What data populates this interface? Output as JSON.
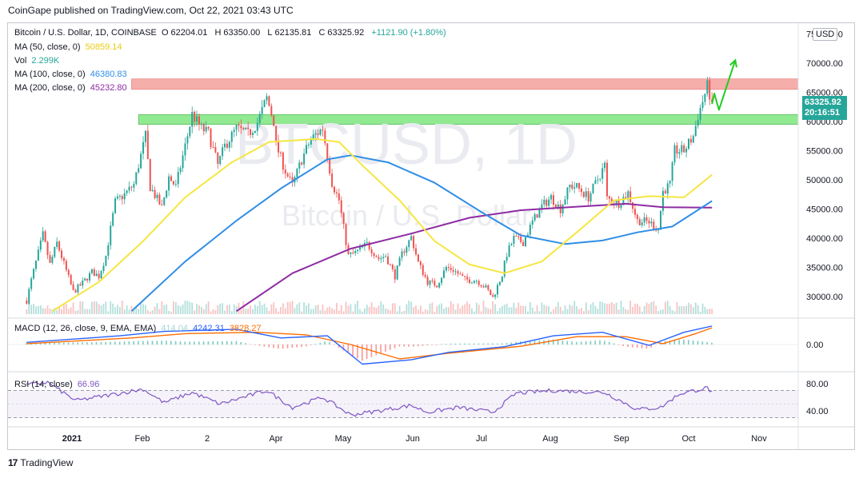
{
  "publisher_line": "CoinGape published on TradingView.com, Oct 22, 2021 03:43 UTC",
  "header": {
    "symbol": "Bitcoin / U.S. Dollar, 1D, COINBASE",
    "o_label": "O",
    "o": "62204.01",
    "h_label": "H",
    "h": "63350.00",
    "l_label": "L",
    "l": "62135.81",
    "c_label": "C",
    "c": "63325.92",
    "change": "+1121.90 (+1.80%)"
  },
  "indicators": {
    "ma50": {
      "label": "MA (50, close, 0)",
      "value": "50859.14",
      "color": "#f5e642"
    },
    "vol": {
      "label": "Vol",
      "value": "2.299K"
    },
    "ma100": {
      "label": "MA (100, close, 0)",
      "value": "46380.83",
      "color": "#2f8ee6"
    },
    "ma200": {
      "label": "MA (200, close, 0)",
      "value": "45232.80",
      "color": "#8e2ba3"
    },
    "macd": {
      "label": "MACD (12, 26, close, 9, EMA, EMA)",
      "hist": "414.04",
      "macd": "4242.31",
      "signal": "3828.27"
    },
    "rsi": {
      "label": "RSI (14, close)",
      "value": "66.96"
    }
  },
  "price_axis": {
    "currency": "USD",
    "ticks": [
      "75000.00",
      "70000.00",
      "65000.00",
      "60000.00",
      "55000.00",
      "50000.00",
      "45000.00",
      "40000.00",
      "35000.00",
      "30000.00"
    ],
    "last_price": "63325.92",
    "countdown": "20:16:51"
  },
  "macd_axis": {
    "ticks": [
      "0.00"
    ]
  },
  "rsi_axis": {
    "ticks": [
      "80.00",
      "40.00"
    ]
  },
  "time_axis": {
    "ticks": [
      "2021",
      "Feb",
      "2",
      "Apr",
      "May",
      "Jun",
      "Jul",
      "Aug",
      "Sep",
      "Oct",
      "Nov"
    ]
  },
  "watermark": {
    "line1": "BTCUSD, 1D",
    "line2": "Bitcoin / U.S. Dollar"
  },
  "branding": {
    "logo_mark": "17",
    "logo_text": "TradingView"
  },
  "colors": {
    "up": "#26a69a",
    "down": "#ef5350",
    "resistance_zone": "#f4a09c",
    "support_zone": "#7ee57e",
    "projection": "#22cc22"
  },
  "chart_data": {
    "type": "candlestick",
    "title": "Bitcoin / U.S. Dollar, 1D, COINBASE",
    "ylim": [
      27000,
      77000
    ],
    "x_range": [
      "2020-12-24",
      "2021-11-28"
    ],
    "zones": [
      {
        "name": "resistance",
        "from": 65500,
        "to": 67300,
        "start": "2021-02-15"
      },
      {
        "name": "support",
        "from": 59500,
        "to": 61200,
        "start": "2021-02-18"
      }
    ],
    "close_path": [
      [
        "2021-01-01",
        29300
      ],
      [
        "2021-01-03",
        32800
      ],
      [
        "2021-01-08",
        40600
      ],
      [
        "2021-01-11",
        35500
      ],
      [
        "2021-01-14",
        39200
      ],
      [
        "2021-01-21",
        30800
      ],
      [
        "2021-01-25",
        32300
      ],
      [
        "2021-01-29",
        34200
      ],
      [
        "2021-02-01",
        33500
      ],
      [
        "2021-02-04",
        37000
      ],
      [
        "2021-02-08",
        46200
      ],
      [
        "2021-02-12",
        47500
      ],
      [
        "2021-02-16",
        49200
      ],
      [
        "2021-02-21",
        57500
      ],
      [
        "2021-02-23",
        48800
      ],
      [
        "2021-02-28",
        45200
      ],
      [
        "2021-03-03",
        50500
      ],
      [
        "2021-03-06",
        48800
      ],
      [
        "2021-03-10",
        55800
      ],
      [
        "2021-03-13",
        61200
      ],
      [
        "2021-03-17",
        58800
      ],
      [
        "2021-03-20",
        58000
      ],
      [
        "2021-03-24",
        52500
      ],
      [
        "2021-03-27",
        55800
      ],
      [
        "2021-04-01",
        58800
      ],
      [
        "2021-04-06",
        57800
      ],
      [
        "2021-04-10",
        59800
      ],
      [
        "2021-04-14",
        64000
      ],
      [
        "2021-04-17",
        60000
      ],
      [
        "2021-04-18",
        56000
      ],
      [
        "2021-04-22",
        51500
      ],
      [
        "2021-04-25",
        49000
      ],
      [
        "2021-04-29",
        53500
      ],
      [
        "2021-05-03",
        57000
      ],
      [
        "2021-05-08",
        58800
      ],
      [
        "2021-05-12",
        49500
      ],
      [
        "2021-05-15",
        46500
      ],
      [
        "2021-05-19",
        37000
      ],
      [
        "2021-05-22",
        37500
      ],
      [
        "2021-05-27",
        39000
      ],
      [
        "2021-06-01",
        36500
      ],
      [
        "2021-06-04",
        37000
      ],
      [
        "2021-06-08",
        33500
      ],
      [
        "2021-06-11",
        37300
      ],
      [
        "2021-06-15",
        40200
      ],
      [
        "2021-06-18",
        35800
      ],
      [
        "2021-06-22",
        32500
      ],
      [
        "2021-06-26",
        32000
      ],
      [
        "2021-06-30",
        35000
      ],
      [
        "2021-07-03",
        34600
      ],
      [
        "2021-07-08",
        32900
      ],
      [
        "2021-07-13",
        32800
      ],
      [
        "2021-07-17",
        31500
      ],
      [
        "2021-07-20",
        29800
      ],
      [
        "2021-07-24",
        33800
      ],
      [
        "2021-07-26",
        37300
      ],
      [
        "2021-07-29",
        40000
      ],
      [
        "2021-08-02",
        39300
      ],
      [
        "2021-08-06",
        42800
      ],
      [
        "2021-08-10",
        45500
      ],
      [
        "2021-08-14",
        47000
      ],
      [
        "2021-08-18",
        45000
      ],
      [
        "2021-08-22",
        49000
      ],
      [
        "2021-08-25",
        48800
      ],
      [
        "2021-08-30",
        47000
      ],
      [
        "2021-09-06",
        52500
      ],
      [
        "2021-09-07",
        46800
      ],
      [
        "2021-09-12",
        46000
      ],
      [
        "2021-09-16",
        47800
      ],
      [
        "2021-09-20",
        43000
      ],
      [
        "2021-09-25",
        42800
      ],
      [
        "2021-09-29",
        41500
      ],
      [
        "2021-10-01",
        48000
      ],
      [
        "2021-10-04",
        49200
      ],
      [
        "2021-10-06",
        55000
      ],
      [
        "2021-10-10",
        55000
      ],
      [
        "2021-10-14",
        57500
      ],
      [
        "2021-10-16",
        61000
      ],
      [
        "2021-10-20",
        66000
      ],
      [
        "2021-10-22",
        63325.92
      ]
    ],
    "ma50_path": [
      [
        "2021-01-12",
        27500
      ],
      [
        "2021-02-01",
        32500
      ],
      [
        "2021-02-20",
        39500
      ],
      [
        "2021-03-10",
        47000
      ],
      [
        "2021-03-30",
        53000
      ],
      [
        "2021-04-15",
        56500
      ],
      [
        "2021-05-05",
        57000
      ],
      [
        "2021-05-15",
        56500
      ],
      [
        "2021-05-25",
        52500
      ],
      [
        "2021-06-10",
        46500
      ],
      [
        "2021-06-25",
        39500
      ],
      [
        "2021-07-10",
        35500
      ],
      [
        "2021-07-25",
        34000
      ],
      [
        "2021-08-10",
        36000
      ],
      [
        "2021-08-25",
        41000
      ],
      [
        "2021-09-10",
        46500
      ],
      [
        "2021-09-25",
        47200
      ],
      [
        "2021-10-10",
        47000
      ],
      [
        "2021-10-22",
        50859.14
      ]
    ],
    "ma100_path": [
      [
        "2021-02-15",
        27500
      ],
      [
        "2021-03-10",
        36000
      ],
      [
        "2021-04-01",
        43000
      ],
      [
        "2021-04-20",
        48500
      ],
      [
        "2021-05-10",
        53500
      ],
      [
        "2021-05-20",
        54200
      ],
      [
        "2021-06-05",
        53000
      ],
      [
        "2021-06-25",
        49500
      ],
      [
        "2021-07-15",
        44500
      ],
      [
        "2021-08-01",
        40500
      ],
      [
        "2021-08-20",
        39000
      ],
      [
        "2021-09-05",
        39600
      ],
      [
        "2021-09-20",
        41000
      ],
      [
        "2021-10-05",
        42000
      ],
      [
        "2021-10-22",
        46380.83
      ]
    ],
    "ma200_path": [
      [
        "2021-04-01",
        27500
      ],
      [
        "2021-04-25",
        34000
      ],
      [
        "2021-05-20",
        38200
      ],
      [
        "2021-06-15",
        40800
      ],
      [
        "2021-07-10",
        43500
      ],
      [
        "2021-08-01",
        44800
      ],
      [
        "2021-08-25",
        45400
      ],
      [
        "2021-09-15",
        45900
      ],
      [
        "2021-10-01",
        45300
      ],
      [
        "2021-10-22",
        45232.8
      ]
    ],
    "projection_path": [
      [
        "2021-10-22",
        63000
      ],
      [
        "2021-10-23",
        64800
      ],
      [
        "2021-10-25",
        62000
      ],
      [
        "2021-11-01",
        70500
      ]
    ],
    "macd_range": [
      -5500,
      5500
    ],
    "macd_path": [
      [
        "2021-01-01",
        500
      ],
      [
        "2021-02-10",
        2000
      ],
      [
        "2021-03-01",
        3000
      ],
      [
        "2021-04-01",
        3500
      ],
      [
        "2021-04-20",
        1500
      ],
      [
        "2021-05-10",
        2000
      ],
      [
        "2021-05-25",
        -4500
      ],
      [
        "2021-06-15",
        -3500
      ],
      [
        "2021-07-01",
        -1800
      ],
      [
        "2021-07-25",
        -500
      ],
      [
        "2021-08-15",
        2000
      ],
      [
        "2021-09-05",
        2800
      ],
      [
        "2021-09-25",
        -200
      ],
      [
        "2021-10-10",
        2800
      ],
      [
        "2021-10-22",
        4242.31
      ]
    ],
    "signal_path": [
      [
        "2021-01-01",
        200
      ],
      [
        "2021-02-15",
        1500
      ],
      [
        "2021-03-10",
        2500
      ],
      [
        "2021-04-10",
        2800
      ],
      [
        "2021-05-01",
        2200
      ],
      [
        "2021-05-20",
        0
      ],
      [
        "2021-06-10",
        -3300
      ],
      [
        "2021-07-01",
        -2000
      ],
      [
        "2021-08-01",
        -400
      ],
      [
        "2021-08-25",
        1800
      ],
      [
        "2021-09-15",
        1800
      ],
      [
        "2021-10-01",
        200
      ],
      [
        "2021-10-15",
        2500
      ],
      [
        "2021-10-22",
        3828.27
      ]
    ],
    "rsi_range": [
      25,
      90
    ],
    "rsi_path": [
      [
        "2021-01-01",
        78
      ],
      [
        "2021-01-10",
        82
      ],
      [
        "2021-01-22",
        55
      ],
      [
        "2021-02-05",
        63
      ],
      [
        "2021-02-20",
        72
      ],
      [
        "2021-03-01",
        52
      ],
      [
        "2021-03-13",
        67
      ],
      [
        "2021-03-25",
        50
      ],
      [
        "2021-04-14",
        70
      ],
      [
        "2021-04-25",
        45
      ],
      [
        "2021-05-08",
        60
      ],
      [
        "2021-05-20",
        34
      ],
      [
        "2021-06-01",
        40
      ],
      [
        "2021-06-15",
        48
      ],
      [
        "2021-06-22",
        38
      ],
      [
        "2021-07-05",
        45
      ],
      [
        "2021-07-20",
        38
      ],
      [
        "2021-07-30",
        66
      ],
      [
        "2021-08-15",
        70
      ],
      [
        "2021-09-06",
        67
      ],
      [
        "2021-09-20",
        42
      ],
      [
        "2021-09-30",
        45
      ],
      [
        "2021-10-08",
        65
      ],
      [
        "2021-10-20",
        74
      ],
      [
        "2021-10-22",
        66.96
      ]
    ]
  }
}
